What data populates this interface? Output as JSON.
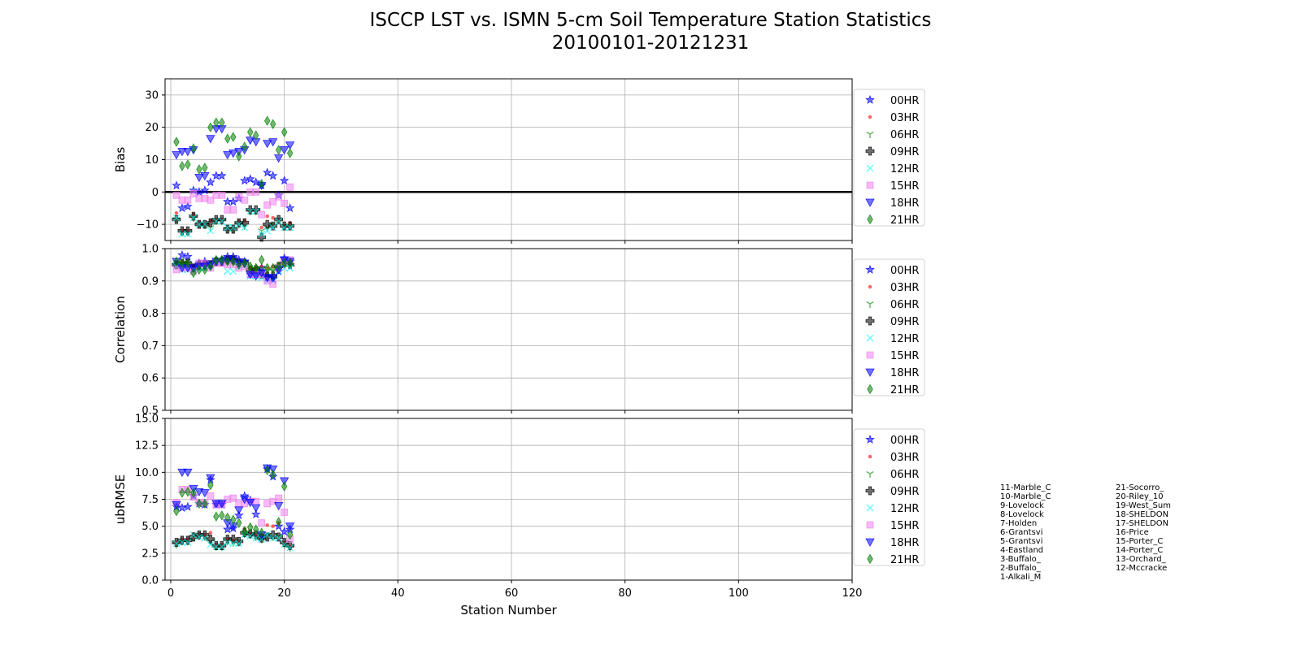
{
  "title": "ISCCP LST vs. ISMN 5-cm Soil Temperature Station Statistics",
  "subtitle": "20100101-20121231",
  "xlabel": "Station Number",
  "xlim": [
    -1,
    120
  ],
  "xticks": [
    0,
    20,
    40,
    60,
    80,
    100,
    120
  ],
  "hours": [
    "00HR",
    "03HR",
    "06HR",
    "09HR",
    "12HR",
    "15HR",
    "18HR",
    "21HR"
  ],
  "styles": [
    {
      "marker": "star",
      "color": "#0000ff"
    },
    {
      "marker": "circle",
      "color": "#ff0000"
    },
    {
      "marker": "tri",
      "color": "#008000"
    },
    {
      "marker": "plus",
      "color": "#000000"
    },
    {
      "marker": "x",
      "color": "#00ffff"
    },
    {
      "marker": "square",
      "color": "#ee82ee"
    },
    {
      "marker": "tridown",
      "color": "#0000ff"
    },
    {
      "marker": "diamond",
      "color": "#008000"
    }
  ],
  "stations_left": [
    "11-Marble_C",
    "10-Marble_C",
    "9-Lovelock",
    "8-Lovelock",
    "7-Holden",
    "6-Grantsvi",
    "5-Grantsvi",
    "4-Eastland",
    "3-Buffalo_",
    "2-Buffalo_",
    "1-Alkali_M"
  ],
  "stations_right": [
    "21-Socorro_",
    "20-Riley_10",
    "19-West_Sum",
    "18-SHELDON",
    "17-SHELDON",
    "16-Price",
    "15-Porter_C",
    "14-Porter_C",
    "13-Orchard_",
    "12-Mccracke"
  ],
  "chart_data": [
    {
      "type": "scatter",
      "ylabel": "Bias",
      "ylim": [
        -15,
        35
      ],
      "yticks": [
        -10,
        0,
        10,
        20,
        30
      ],
      "yticklabels": [
        "−10",
        "0",
        "10",
        "20",
        "30"
      ],
      "zero_line": true,
      "x": [
        1,
        2,
        3,
        4,
        5,
        6,
        7,
        8,
        9,
        10,
        11,
        12,
        13,
        14,
        15,
        16,
        17,
        18,
        19,
        20,
        21
      ],
      "series": [
        {
          "name": "00HR",
          "values": [
            2,
            -5,
            -4.5,
            0.5,
            0,
            0.5,
            3,
            5,
            5,
            -3,
            -3,
            -2,
            3.5,
            4,
            3,
            2,
            6,
            5,
            -1,
            3.5,
            -5
          ]
        },
        {
          "name": "03HR",
          "values": [
            -6.5,
            -12,
            -12,
            -7,
            -9.5,
            -10,
            -9,
            -8.5,
            -8.5,
            -11,
            -11,
            -9,
            -9,
            -6,
            -6,
            -11,
            -7.5,
            -8,
            -8.5,
            -10.5,
            -9.5
          ]
        },
        {
          "name": "06HR",
          "values": [
            -8.5,
            -12.5,
            -12.5,
            -8,
            -10,
            -10,
            -11,
            -9,
            -9,
            -11.5,
            -11.5,
            -10,
            -10.5,
            -6,
            -6,
            -12,
            -11,
            -10,
            -8.5,
            -10.5,
            -10.5
          ]
        },
        {
          "name": "09HR",
          "values": [
            -8.5,
            -12,
            -12,
            -7.5,
            -10,
            -10,
            -9.5,
            -8.5,
            -8.5,
            -11.5,
            -11.5,
            -9.5,
            -9.5,
            -5.5,
            -5.5,
            -14,
            -10,
            -10.5,
            -8.5,
            -10.5,
            -10.5
          ]
        },
        {
          "name": "12HR",
          "values": [
            -8,
            -13,
            -13,
            -8,
            -10,
            -10,
            -12,
            -9,
            -9,
            -11,
            -11,
            -10,
            -11,
            -6,
            -6,
            -13,
            -12,
            -11,
            -9,
            -11,
            -11
          ]
        },
        {
          "name": "15HR",
          "values": [
            -1,
            -2.5,
            -2.5,
            -0.5,
            -2,
            -2,
            -2.5,
            -1,
            -1,
            -5.5,
            -5.5,
            -1.5,
            -2.5,
            0,
            0,
            -7,
            -4,
            -3,
            -1.5,
            -3.5,
            1.5
          ]
        },
        {
          "name": "18HR",
          "values": [
            11.5,
            12.5,
            12.5,
            13,
            4.5,
            5,
            16.5,
            19.5,
            19.5,
            11.5,
            12,
            12.5,
            13,
            16,
            15.5,
            2,
            15,
            15.5,
            10.5,
            13,
            14.5
          ]
        },
        {
          "name": "21HR",
          "values": [
            15.5,
            8,
            8.5,
            13.5,
            7,
            7.5,
            20,
            21.5,
            21.5,
            16.5,
            17,
            11,
            14,
            18.5,
            17.5,
            2.5,
            22,
            21,
            13,
            18.5,
            12
          ]
        }
      ]
    },
    {
      "type": "scatter",
      "ylabel": "Correlation",
      "ylim": [
        0.5,
        1.0
      ],
      "yticks": [
        0.5,
        0.6,
        0.7,
        0.8,
        0.9,
        1.0
      ],
      "yticklabels": [
        "0.5",
        "0.6",
        "0.7",
        "0.8",
        "0.9",
        "1.0"
      ],
      "zero_line": false,
      "x": [
        1,
        2,
        3,
        4,
        5,
        6,
        7,
        8,
        9,
        10,
        11,
        12,
        13,
        14,
        15,
        16,
        17,
        18,
        19,
        20,
        21
      ],
      "series": [
        {
          "name": "00HR",
          "values": [
            0.95,
            0.98,
            0.975,
            0.94,
            0.955,
            0.96,
            0.95,
            0.96,
            0.965,
            0.975,
            0.975,
            0.965,
            0.96,
            0.92,
            0.92,
            0.94,
            0.91,
            0.905,
            0.93,
            0.97,
            0.96
          ]
        },
        {
          "name": "03HR",
          "values": [
            0.955,
            0.96,
            0.96,
            0.945,
            0.955,
            0.955,
            0.955,
            0.965,
            0.965,
            0.97,
            0.97,
            0.96,
            0.96,
            0.94,
            0.94,
            0.945,
            0.94,
            0.945,
            0.95,
            0.965,
            0.96
          ]
        },
        {
          "name": "06HR",
          "values": [
            0.95,
            0.955,
            0.955,
            0.94,
            0.95,
            0.95,
            0.95,
            0.96,
            0.96,
            0.965,
            0.965,
            0.955,
            0.955,
            0.935,
            0.935,
            0.94,
            0.93,
            0.93,
            0.945,
            0.96,
            0.955
          ]
        },
        {
          "name": "09HR",
          "values": [
            0.95,
            0.955,
            0.955,
            0.94,
            0.95,
            0.95,
            0.95,
            0.96,
            0.96,
            0.965,
            0.965,
            0.955,
            0.955,
            0.935,
            0.935,
            0.92,
            0.915,
            0.915,
            0.945,
            0.955,
            0.95
          ]
        },
        {
          "name": "12HR",
          "values": [
            0.945,
            0.935,
            0.935,
            0.935,
            0.94,
            0.94,
            0.95,
            0.96,
            0.96,
            0.93,
            0.93,
            0.945,
            0.95,
            0.915,
            0.915,
            0.91,
            0.9,
            0.9,
            0.93,
            0.94,
            0.94
          ]
        },
        {
          "name": "15HR",
          "values": [
            0.935,
            0.94,
            0.94,
            0.93,
            0.955,
            0.955,
            0.94,
            0.955,
            0.955,
            0.95,
            0.95,
            0.94,
            0.945,
            0.92,
            0.92,
            0.92,
            0.9,
            0.89,
            0.94,
            0.96,
            0.965
          ]
        },
        {
          "name": "18HR",
          "values": [
            0.96,
            0.94,
            0.94,
            0.94,
            0.945,
            0.945,
            0.95,
            0.96,
            0.96,
            0.965,
            0.965,
            0.955,
            0.955,
            0.92,
            0.915,
            0.925,
            0.91,
            0.91,
            0.935,
            0.965,
            0.96
          ]
        },
        {
          "name": "21HR",
          "values": [
            0.96,
            0.955,
            0.955,
            0.925,
            0.935,
            0.935,
            0.945,
            0.965,
            0.965,
            0.96,
            0.96,
            0.95,
            0.955,
            0.945,
            0.94,
            0.965,
            0.94,
            0.94,
            0.945,
            0.955,
            0.955
          ]
        }
      ]
    },
    {
      "type": "scatter",
      "ylabel": "ubRMSE",
      "ylim": [
        0,
        15
      ],
      "yticks": [
        0,
        2.5,
        5,
        7.5,
        10,
        12.5,
        15
      ],
      "yticklabels": [
        "0.0",
        "2.5",
        "5.0",
        "7.5",
        "10.0",
        "12.5",
        "15.0"
      ],
      "zero_line": false,
      "x": [
        1,
        2,
        3,
        4,
        5,
        6,
        7,
        8,
        9,
        10,
        11,
        12,
        13,
        14,
        15,
        16,
        17,
        18,
        19,
        20,
        21
      ],
      "series": [
        {
          "name": "00HR",
          "values": [
            6.8,
            6.7,
            6.8,
            7.8,
            7.1,
            7.0,
            9.3,
            7.0,
            7.0,
            4.7,
            4.8,
            6.0,
            7.8,
            7.4,
            6.1,
            4.0,
            10.3,
            9.6,
            5.0,
            4.5,
            4.7
          ]
        },
        {
          "name": "03HR",
          "values": [
            3.5,
            3.8,
            3.8,
            4.3,
            4.3,
            4.2,
            4.4,
            3.3,
            3.3,
            3.8,
            3.7,
            3.6,
            4.8,
            4.3,
            4.1,
            4.1,
            5.1,
            5.0,
            5.3,
            3.5,
            3.1
          ]
        },
        {
          "name": "06HR",
          "values": [
            3.3,
            3.6,
            3.6,
            4.0,
            4.1,
            4.0,
            3.6,
            3.1,
            3.1,
            3.6,
            3.5,
            3.5,
            4.3,
            4.2,
            4.0,
            3.8,
            4.1,
            4.0,
            4.1,
            3.3,
            3.0
          ]
        },
        {
          "name": "09HR",
          "values": [
            3.5,
            3.7,
            3.7,
            4.0,
            4.2,
            4.2,
            3.8,
            3.2,
            3.2,
            3.8,
            3.8,
            3.6,
            4.4,
            4.3,
            4.2,
            3.9,
            4.0,
            4.2,
            4.0,
            3.5,
            3.2
          ]
        },
        {
          "name": "12HR",
          "values": [
            3.4,
            3.5,
            3.5,
            4.2,
            4.0,
            3.9,
            3.3,
            3.1,
            3.1,
            3.5,
            3.4,
            3.4,
            4.2,
            4.1,
            3.9,
            3.8,
            4.2,
            3.9,
            3.9,
            3.3,
            3.0
          ]
        },
        {
          "name": "15HR",
          "values": [
            7.2,
            8.4,
            8.4,
            7.7,
            7.2,
            7.2,
            7.8,
            7.0,
            7.0,
            7.5,
            7.6,
            7.1,
            7.1,
            7.3,
            7.3,
            5.3,
            7.1,
            7.3,
            7.6,
            6.3,
            3.8
          ]
        },
        {
          "name": "18HR",
          "values": [
            7.0,
            10.0,
            10.0,
            8.5,
            8.2,
            8.1,
            9.5,
            7.1,
            7.1,
            5.3,
            5.0,
            6.5,
            7.5,
            7.2,
            6.7,
            4.2,
            10.4,
            10.3,
            6.9,
            9.2,
            5.0
          ]
        },
        {
          "name": "21HR",
          "values": [
            6.4,
            8.1,
            8.2,
            8.1,
            7.1,
            7.1,
            8.8,
            5.9,
            6.0,
            5.8,
            5.6,
            5.3,
            4.5,
            4.9,
            4.7,
            4.4,
            10.2,
            9.8,
            5.4,
            8.7,
            4.2
          ]
        }
      ]
    }
  ]
}
